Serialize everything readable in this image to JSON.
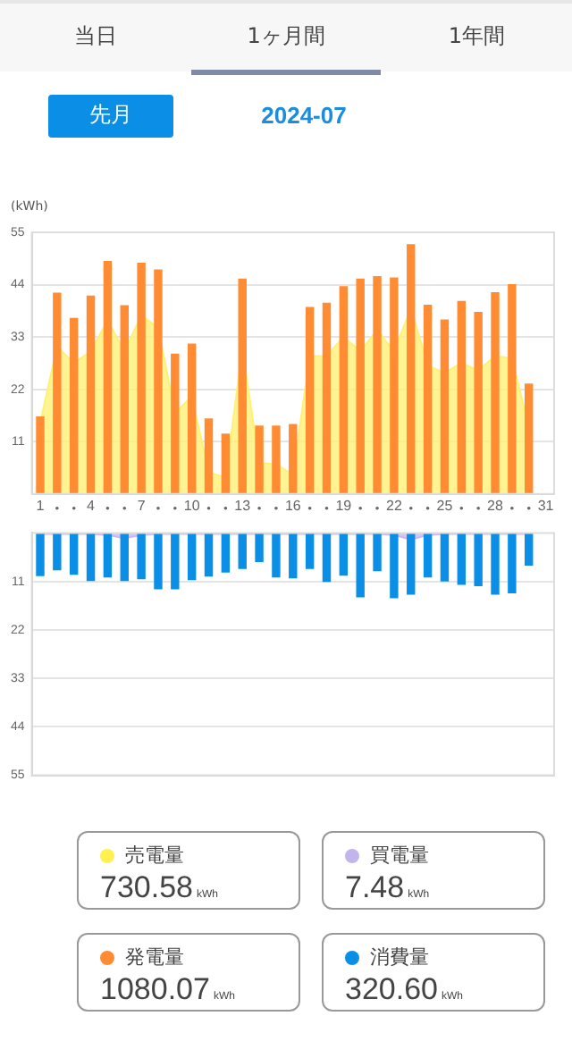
{
  "chart_data": [
    {
      "type": "other",
      "categories": [
        "当日",
        "1ヶ月間",
        "1年間"
      ],
      "annotations": [
        "先月"
      ]
    },
    {
      "type": "bar",
      "title": "2024-07",
      "ylabel": "(kWh)",
      "categories": [
        "1",
        null,
        null,
        "4",
        null,
        null,
        "7",
        null,
        null,
        "10",
        null,
        null,
        "13",
        null,
        null,
        "16",
        null,
        null,
        "19",
        null,
        null,
        "22",
        null,
        null,
        "25",
        null,
        null,
        "28",
        null,
        null,
        "31"
      ],
      "ylim": [
        0,
        55
      ],
      "yticks": [
        11,
        22,
        33,
        44,
        55
      ],
      "grid": "y",
      "legend": false,
      "series": [
        {
          "type": "area",
          "color": "#fff176",
          "values": [
            15,
            31,
            27.5,
            30,
            36.5,
            30,
            37.5,
            35,
            17,
            20.5,
            4.5,
            3.5,
            30.5,
            6.5,
            6.3,
            4,
            29,
            29,
            33,
            30,
            34.5,
            30,
            39,
            27,
            25.5,
            27.5,
            26,
            29,
            28.5,
            14,
            null
          ]
        },
        {
          "type": "bar",
          "color": "#ff8b32",
          "values": [
            16.3,
            42.3,
            37,
            41.7,
            49,
            39.7,
            48.6,
            47.2,
            29.5,
            31.6,
            15.9,
            12.7,
            45.3,
            14.4,
            14.4,
            14.7,
            39.3,
            40.2,
            43.7,
            45.3,
            45.8,
            45.5,
            52.5,
            39.8,
            36.7,
            40.6,
            38.3,
            42.4,
            44.1,
            23.2,
            null
          ]
        }
      ]
    },
    {
      "type": "bar",
      "categories": [
        null,
        null,
        null,
        null,
        null,
        null,
        null,
        null,
        null,
        null,
        null,
        null,
        null,
        null,
        null,
        null,
        null,
        null,
        null,
        null,
        null,
        null,
        null,
        null,
        null,
        null,
        null,
        null,
        null,
        null,
        null
      ],
      "ylim": [
        55,
        0
      ],
      "yticks": [
        11,
        22,
        33,
        44,
        55
      ],
      "grid": "y",
      "legend": false,
      "tick_labels": "y",
      "series": [
        {
          "type": "area",
          "color": "#c9b8f0",
          "values": [
            0.2,
            0.2,
            0.2,
            0.2,
            0.5,
            1.2,
            0.5,
            0.2,
            0.2,
            0.2,
            0.2,
            0.2,
            0.2,
            0.2,
            0.2,
            0.2,
            0.2,
            0.2,
            0.2,
            0.2,
            0.2,
            0.5,
            1.5,
            0.5,
            0.2,
            0.2,
            0.2,
            0.2,
            0.2,
            0.2,
            null
          ]
        },
        {
          "type": "bar",
          "color": "#0b8fe6",
          "values": [
            9.8,
            8.5,
            9.5,
            10.9,
            10.1,
            10.9,
            10.5,
            12.8,
            12.8,
            10.7,
            9.9,
            9,
            8.2,
            6.6,
            10.1,
            10.3,
            8.2,
            11.1,
            9.7,
            14.6,
            8.7,
            14.8,
            14,
            10.1,
            11,
            11.8,
            12.1,
            14,
            13.7,
            7.4,
            null
          ]
        }
      ]
    },
    {
      "type": "other",
      "annotations": [
        "kWh"
      ],
      "series": [
        {
          "name": "売電量",
          "color": "#fff04f",
          "values": [
            730.58
          ],
          "value_labels": [
            "730.58"
          ]
        },
        {
          "name": "買電量",
          "color": "#c3b5ec",
          "values": [
            7.48
          ],
          "value_labels": [
            "7.48"
          ]
        },
        {
          "name": "発電量",
          "color": "#ff8b32",
          "values": [
            1080.07
          ],
          "value_labels": [
            "1080.07"
          ]
        },
        {
          "name": "消費量",
          "color": "#0b8fe6",
          "values": [
            320.6
          ],
          "value_labels": [
            "320.60"
          ]
        }
      ]
    }
  ]
}
